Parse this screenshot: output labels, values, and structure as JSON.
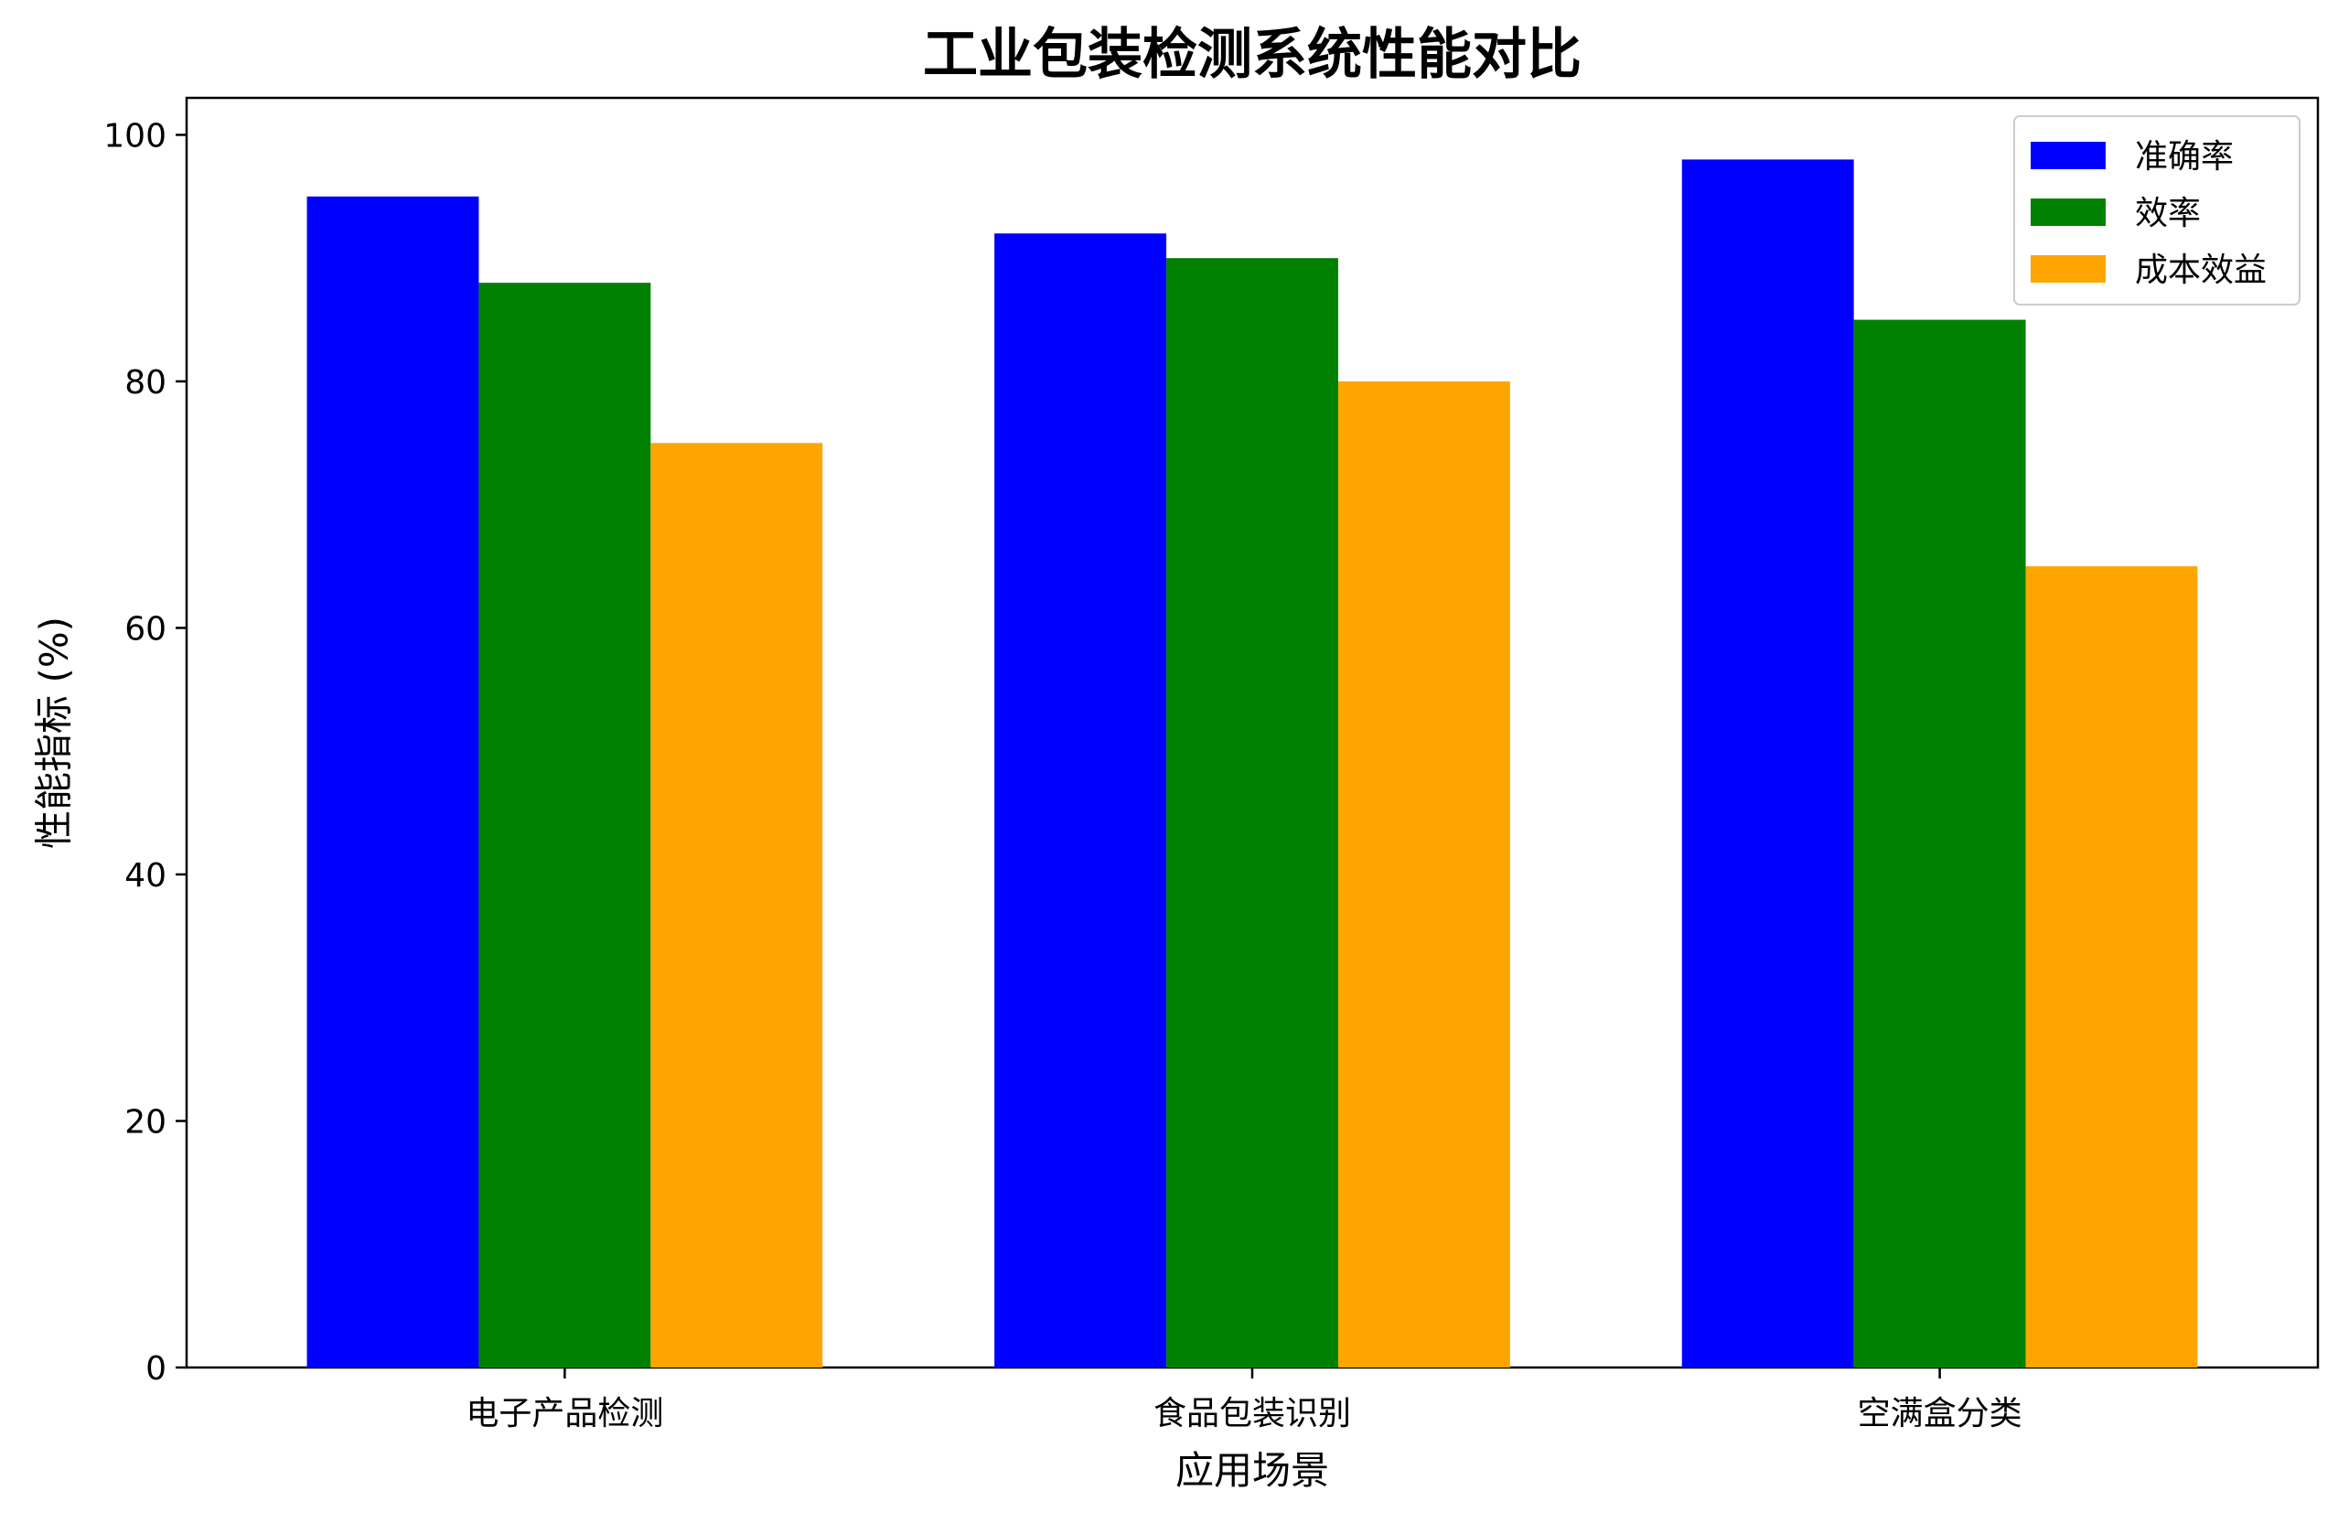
{
  "chart_data": {
    "type": "bar",
    "title": "工业包装检测系统性能对比",
    "xlabel": "应用场景",
    "ylabel": "性能指标 (%)",
    "categories": [
      "电子产品检测",
      "食品包装识别",
      "空满盒分类"
    ],
    "series": [
      {
        "name": "准确率",
        "values": [
          95,
          92,
          98
        ],
        "color": "#0000ff"
      },
      {
        "name": "效率",
        "values": [
          88,
          90,
          85
        ],
        "color": "#008000"
      },
      {
        "name": "成本效益",
        "values": [
          75,
          80,
          65
        ],
        "color": "#ffa500"
      }
    ],
    "ylim": [
      0,
      103
    ],
    "yticks": [
      0,
      20,
      40,
      60,
      80,
      100
    ],
    "grid": false,
    "legend_position": "top-right"
  }
}
